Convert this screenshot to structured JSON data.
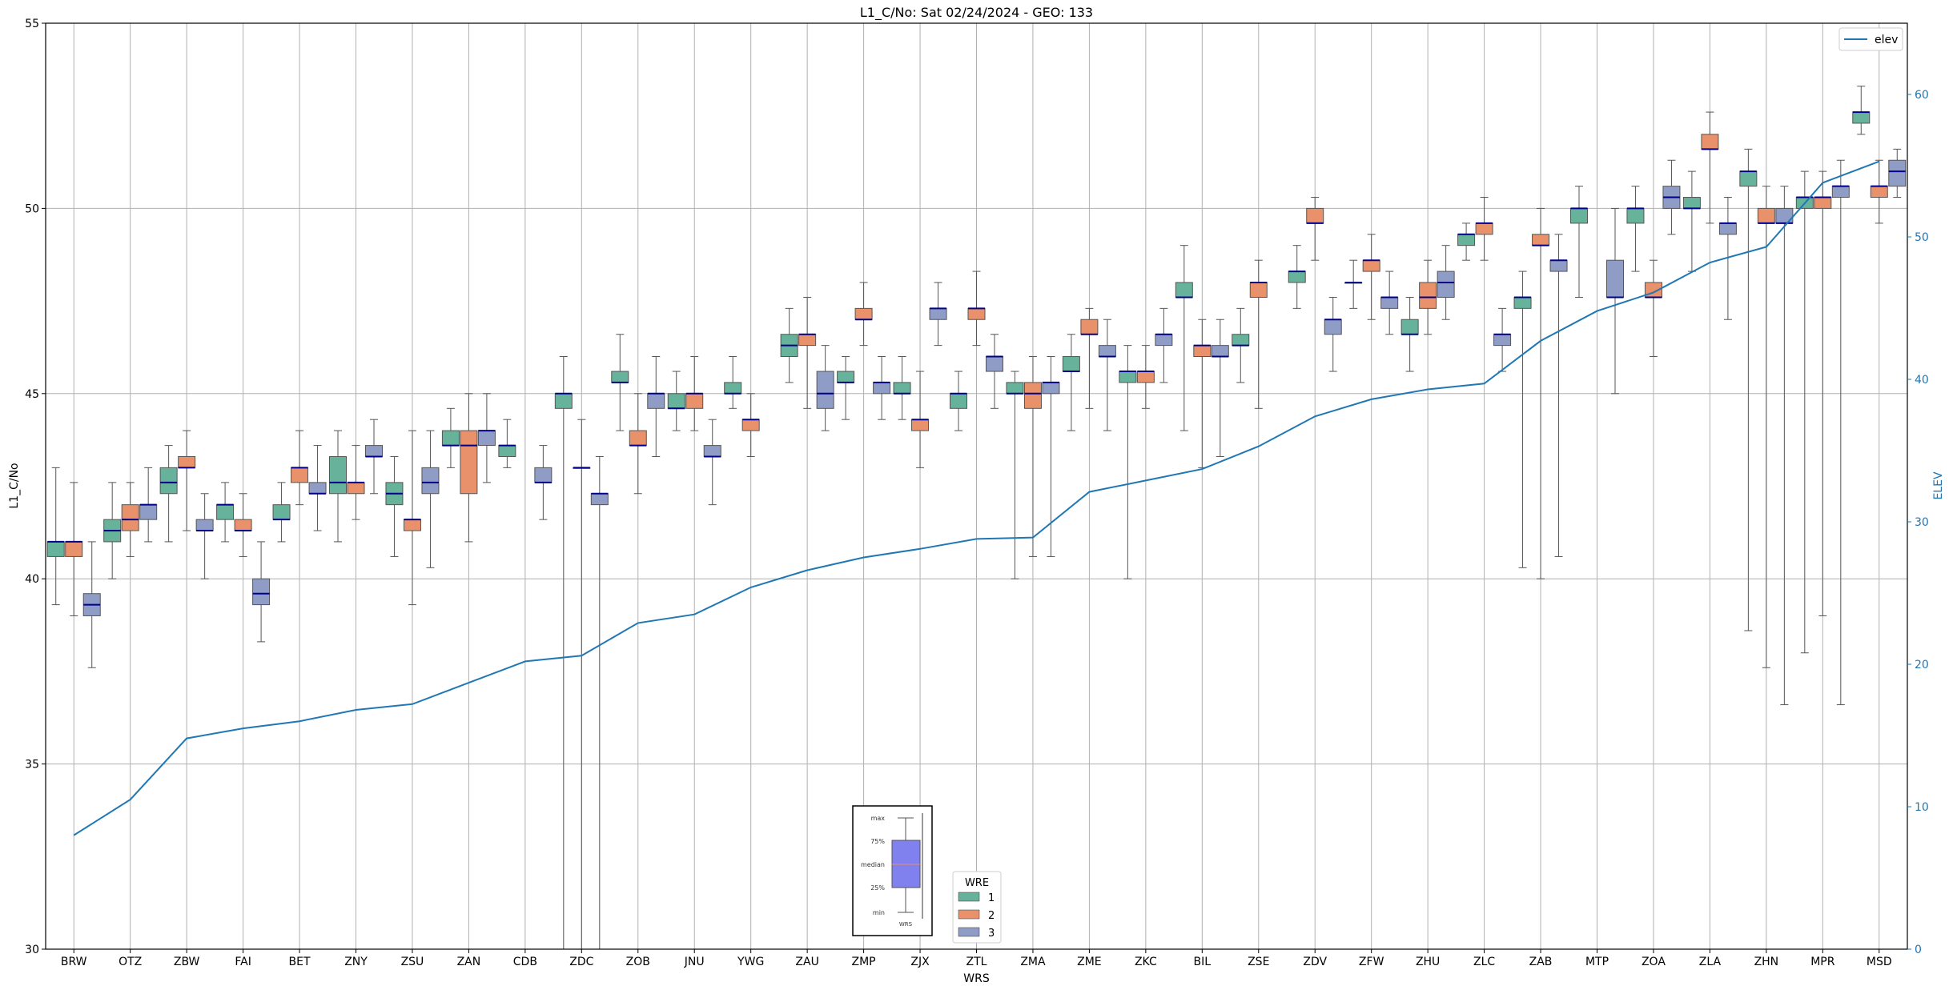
{
  "chart_data": {
    "type": "box",
    "title": "L1_C/No: Sat 02/24/2024 - GEO: 133",
    "xlabel": "WRS",
    "ylabel": "L1_C/No",
    "ylabel_right": "ELEV",
    "ylim": [
      30,
      55
    ],
    "ylim_right": [
      0,
      65
    ],
    "yticks": [
      30,
      35,
      40,
      45,
      50,
      55
    ],
    "yticks_right": [
      0,
      10,
      20,
      30,
      40,
      50,
      60
    ],
    "grid": true,
    "categories": [
      "BRW",
      "OTZ",
      "ZBW",
      "FAI",
      "BET",
      "ZNY",
      "ZSU",
      "ZAN",
      "CDB",
      "ZDC",
      "ZOB",
      "JNU",
      "YWG",
      "ZAU",
      "ZMP",
      "ZJX",
      "ZTL",
      "ZMA",
      "ZME",
      "ZKC",
      "BIL",
      "ZSE",
      "ZDV",
      "ZFW",
      "ZHU",
      "ZLC",
      "ZAB",
      "MTP",
      "ZOA",
      "ZLA",
      "ZHN",
      "MPR",
      "MSD"
    ],
    "legend_wre": {
      "title": "WRE",
      "placement": "bottom-center",
      "entries": [
        {
          "label": "1",
          "color": "#66b29a"
        },
        {
          "label": "2",
          "color": "#e8916a"
        },
        {
          "label": "3",
          "color": "#8e9cc6"
        }
      ]
    },
    "legend_elev": {
      "label": "elev",
      "color": "#1f77b4",
      "placement": "top-right"
    },
    "key_box": {
      "labels": [
        "max",
        "75%",
        "median",
        "25%",
        "min"
      ],
      "xlabel": "WRS",
      "color": "#8080ee"
    },
    "elev": [
      8,
      10.5,
      14.8,
      15.5,
      16,
      16.8,
      17.2,
      18.7,
      20.2,
      20.6,
      22.9,
      23.5,
      25.4,
      26.6,
      27.5,
      28.1,
      28.8,
      28.9,
      32.1,
      32.9,
      33.7,
      35.3,
      37.4,
      38.6,
      39.3,
      39.7,
      42.7,
      44.8,
      46.1,
      48.2,
      49.3,
      53.8,
      55.3
    ],
    "series": [
      {
        "name": "1",
        "boxes": [
          [
            39.3,
            40.6,
            41,
            41,
            43
          ],
          [
            40,
            41,
            41.3,
            41.6,
            42.6
          ],
          [
            41,
            42.3,
            42.6,
            43,
            43.6
          ],
          [
            41,
            41.6,
            42,
            42,
            42.6
          ],
          [
            41,
            41.6,
            41.6,
            42,
            42.6
          ],
          [
            41,
            42.3,
            42.6,
            43.3,
            44
          ],
          [
            40.6,
            42,
            42.3,
            42.6,
            43.3
          ],
          [
            43,
            43.6,
            43.6,
            44,
            44.6
          ],
          [
            43,
            43.3,
            43.6,
            43.6,
            44.3
          ],
          [
            30,
            44.6,
            45,
            45,
            46
          ],
          [
            44,
            45.3,
            45.3,
            45.6,
            46.6
          ],
          [
            44,
            44.6,
            44.6,
            45,
            45.6
          ],
          [
            44.6,
            45,
            45,
            45.3,
            46
          ],
          [
            45.3,
            46,
            46.3,
            46.6,
            47.3
          ],
          [
            44.3,
            45.3,
            45.3,
            45.6,
            46
          ],
          [
            44.3,
            45,
            45,
            45.3,
            46
          ],
          [
            44,
            44.6,
            45,
            45,
            45.6
          ],
          [
            40,
            45,
            45,
            45.3,
            45.6
          ],
          [
            44,
            45.6,
            45.6,
            46,
            46.6
          ],
          [
            40,
            45.3,
            45.6,
            45.6,
            46.3
          ],
          [
            44,
            47.6,
            47.6,
            48,
            49
          ],
          [
            45.3,
            46.3,
            46.3,
            46.6,
            47.3
          ],
          [
            47.3,
            48,
            48.3,
            48.3,
            49
          ],
          [
            47.3,
            48,
            48,
            48,
            48.6
          ],
          [
            45.6,
            46.6,
            46.6,
            47,
            47.6
          ],
          [
            48.6,
            49,
            49.3,
            49.3,
            49.6
          ],
          [
            40.3,
            47.3,
            47.6,
            47.6,
            48.3
          ],
          [
            47.6,
            49.6,
            50,
            50,
            50.6
          ],
          [
            48.3,
            49.6,
            50,
            50,
            50.6
          ],
          [
            48.3,
            50,
            50,
            50.3,
            51
          ],
          [
            38.6,
            50.6,
            51,
            51,
            51.6
          ],
          [
            38,
            50,
            50.3,
            50.3,
            51
          ],
          [
            52,
            52.3,
            52.6,
            52.6,
            53.3
          ]
        ]
      },
      {
        "name": "2",
        "boxes": [
          [
            39,
            40.6,
            41,
            41,
            42.6
          ],
          [
            40.6,
            41.3,
            41.6,
            42,
            42.6
          ],
          [
            41.3,
            43,
            43,
            43.3,
            44
          ],
          [
            40.6,
            41.3,
            41.3,
            41.6,
            42.3
          ],
          [
            42,
            42.6,
            43,
            43,
            44
          ],
          [
            41.6,
            42.3,
            42.6,
            42.6,
            43.6
          ],
          [
            39.3,
            41.3,
            41.6,
            41.6,
            44
          ],
          [
            41,
            42.3,
            43.6,
            44,
            45
          ],
          [
            null,
            null,
            null,
            null,
            null
          ],
          [
            30,
            43,
            43,
            43,
            44.3
          ],
          [
            42.3,
            43.6,
            43.6,
            44,
            45
          ],
          [
            44,
            44.6,
            45,
            45,
            46
          ],
          [
            43.3,
            44,
            44.3,
            44.3,
            45
          ],
          [
            44.6,
            46.3,
            46.6,
            46.6,
            47.6
          ],
          [
            46.3,
            47,
            47,
            47.3,
            48
          ],
          [
            43,
            44,
            44.3,
            44.3,
            45.6
          ],
          [
            46.3,
            47,
            47.3,
            47.3,
            48.3
          ],
          [
            40.6,
            44.6,
            45,
            45.3,
            46
          ],
          [
            44.6,
            46.6,
            46.6,
            47,
            47.3
          ],
          [
            44.6,
            45.3,
            45.6,
            45.6,
            46.3
          ],
          [
            43,
            46,
            46.3,
            46.3,
            47
          ],
          [
            44.6,
            47.6,
            48,
            48,
            48.6
          ],
          [
            48.6,
            49.6,
            49.6,
            50,
            50.3
          ],
          [
            47,
            48.3,
            48.6,
            48.6,
            49.3
          ],
          [
            46.6,
            47.3,
            47.6,
            48,
            48.6
          ],
          [
            48.6,
            49.3,
            49.6,
            49.6,
            50.3
          ],
          [
            40,
            49,
            49,
            49.3,
            50
          ],
          [
            null,
            null,
            null,
            null,
            null
          ],
          [
            46,
            47.6,
            47.6,
            48,
            48.6
          ],
          [
            49.6,
            51.6,
            51.6,
            52,
            52.6
          ],
          [
            37.6,
            49.6,
            49.6,
            50,
            50.6
          ],
          [
            39,
            50,
            50.3,
            50.3,
            51
          ],
          [
            49.6,
            50.3,
            50.6,
            50.6,
            51.3
          ]
        ]
      },
      {
        "name": "3",
        "boxes": [
          [
            37.6,
            39,
            39.3,
            39.6,
            41
          ],
          [
            41,
            41.6,
            42,
            42,
            43
          ],
          [
            40,
            41.3,
            41.3,
            41.6,
            42.3
          ],
          [
            38.3,
            39.3,
            39.6,
            40,
            41
          ],
          [
            41.3,
            42.3,
            42.3,
            42.6,
            43.6
          ],
          [
            42.3,
            43.3,
            43.3,
            43.6,
            44.3
          ],
          [
            40.3,
            42.3,
            42.6,
            43,
            44
          ],
          [
            42.6,
            43.6,
            44,
            44,
            45
          ],
          [
            41.6,
            42.6,
            42.6,
            43,
            43.6
          ],
          [
            30,
            42,
            42.3,
            42.3,
            43.3
          ],
          [
            43.3,
            44.6,
            45,
            45,
            46
          ],
          [
            42,
            43.3,
            43.3,
            43.6,
            44.3
          ],
          [
            null,
            null,
            null,
            null,
            null
          ],
          [
            44,
            44.6,
            45,
            45.6,
            46.3
          ],
          [
            44.3,
            45,
            45.3,
            45.3,
            46
          ],
          [
            46.3,
            47,
            47.3,
            47.3,
            48
          ],
          [
            44.6,
            45.6,
            46,
            46,
            46.6
          ],
          [
            40.6,
            45,
            45.3,
            45.3,
            46
          ],
          [
            44,
            46,
            46,
            46.3,
            47
          ],
          [
            45.3,
            46.3,
            46.6,
            46.6,
            47.3
          ],
          [
            43.3,
            46,
            46,
            46.3,
            47
          ],
          [
            null,
            null,
            null,
            null,
            null
          ],
          [
            45.6,
            46.6,
            47,
            47,
            47.6
          ],
          [
            46.6,
            47.3,
            47.6,
            47.6,
            48.3
          ],
          [
            47,
            47.6,
            48,
            48.3,
            49
          ],
          [
            45.6,
            46.3,
            46.6,
            46.6,
            47.3
          ],
          [
            40.6,
            48.3,
            48.6,
            48.6,
            49.3
          ],
          [
            45,
            47.6,
            47.6,
            48.6,
            50
          ],
          [
            49.3,
            50,
            50.3,
            50.6,
            51.3
          ],
          [
            47,
            49.3,
            49.6,
            49.6,
            50.3
          ],
          [
            36.6,
            49.6,
            49.6,
            50,
            50.6
          ],
          [
            36.6,
            50.3,
            50.6,
            50.6,
            51.3
          ],
          [
            50.3,
            50.6,
            51,
            51.3,
            51.6
          ]
        ]
      }
    ]
  }
}
